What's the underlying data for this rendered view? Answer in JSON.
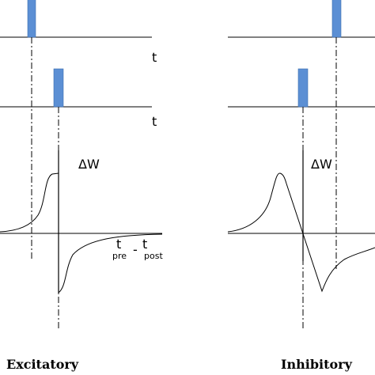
{
  "panels": {
    "excitatory": {
      "caption": "Excitatory",
      "delta_w_label": "ΔW",
      "t_label_1": "t",
      "t_label_2": "t",
      "x_axis_label": {
        "t1": "t",
        "sub1": "pre",
        "minus": "-",
        "t2": "t",
        "sub2": "post"
      }
    },
    "inhibitory": {
      "caption": "Inhibitory",
      "delta_w_label": "ΔW"
    }
  },
  "colors": {
    "spike": "#5b8fd4",
    "spike_edge": "#3d6fb0",
    "line": "#000000"
  }
}
